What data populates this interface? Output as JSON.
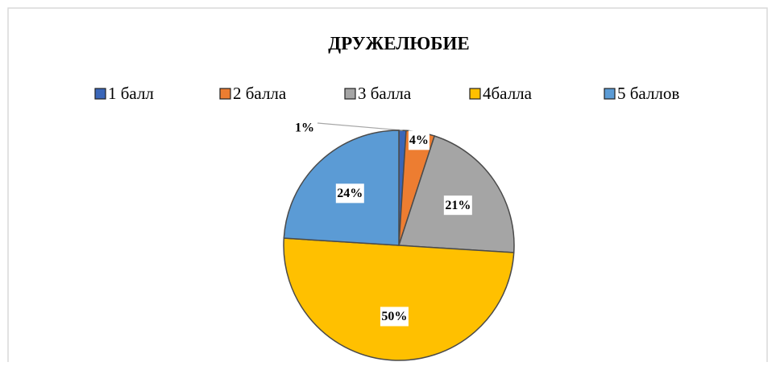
{
  "chart_data": {
    "type": "pie",
    "title": "ДРУЖЕЛЮБИЕ",
    "categories": [
      "1 балл",
      "2 балла",
      "3 балла",
      "4балла",
      "5 баллов"
    ],
    "values": [
      1,
      4,
      21,
      50,
      24
    ],
    "value_labels": [
      "1%",
      "4%",
      "21%",
      "50%",
      "24%"
    ],
    "colors": [
      "#3a66b8",
      "#ed7d31",
      "#a5a5a5",
      "#ffc000",
      "#5b9bd5"
    ],
    "legend": "top"
  }
}
